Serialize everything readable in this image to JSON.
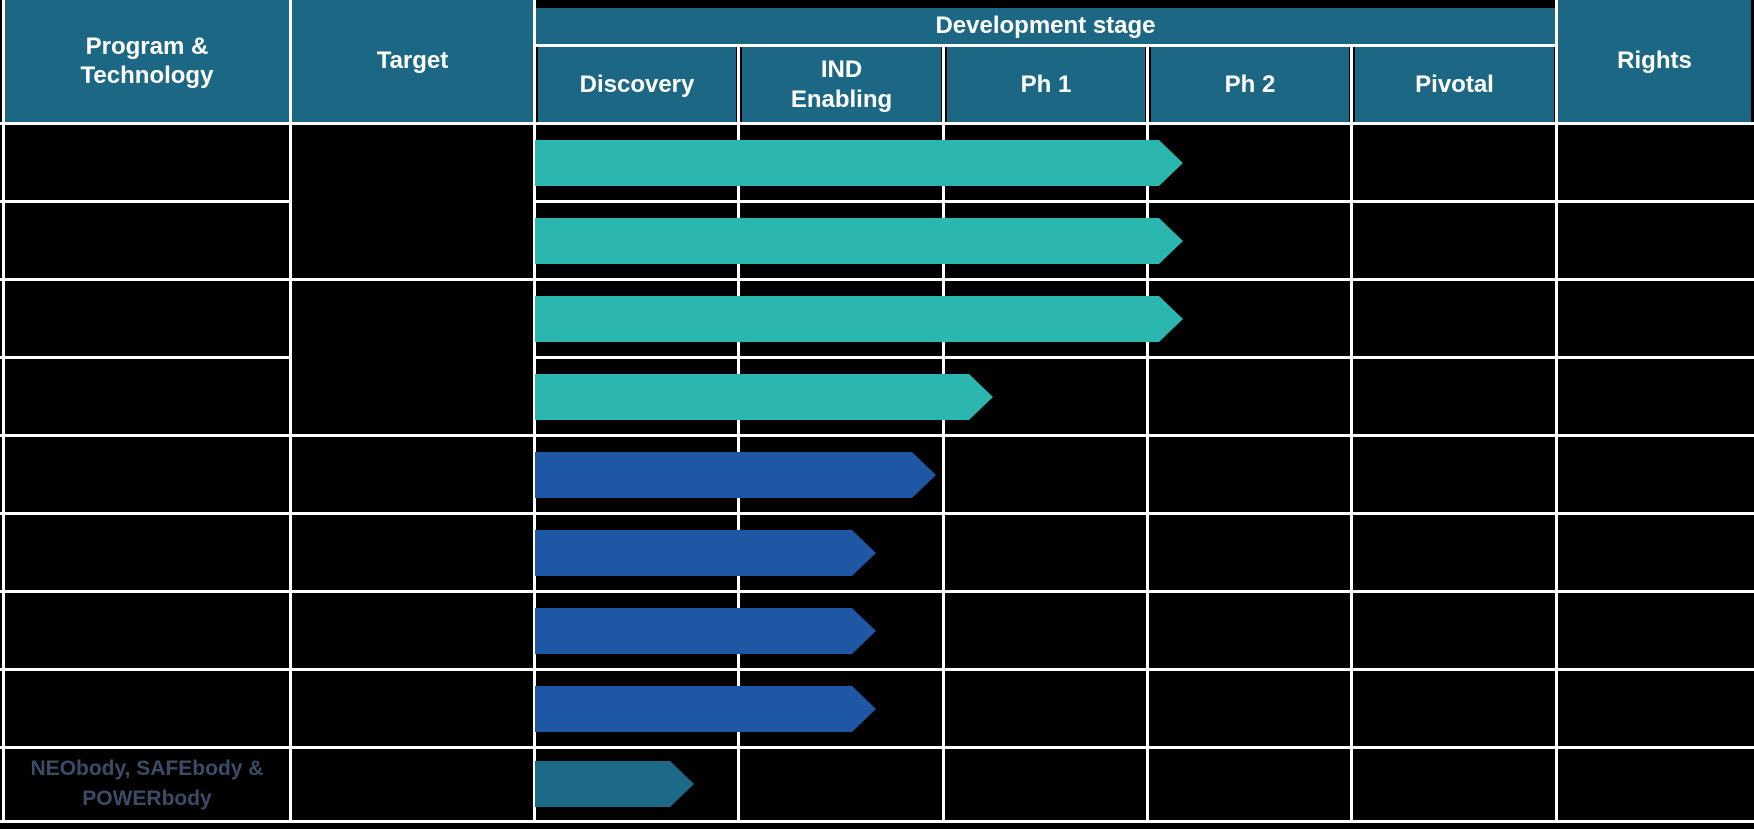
{
  "table": {
    "columns": {
      "program_technology": "Program &\nTechnology",
      "target": "Target",
      "development_stage": "Development stage",
      "stages": [
        "Discovery",
        "IND\nEnabling",
        "Ph 1",
        "Ph 2",
        "Pivotal"
      ],
      "rights": "Rights"
    },
    "rows": [
      {
        "program": "",
        "target": "",
        "rights": ""
      },
      {
        "program": "",
        "target": "",
        "rights": ""
      },
      {
        "program": "",
        "target": "",
        "rights": ""
      },
      {
        "program": "",
        "target": "",
        "rights": ""
      },
      {
        "program": "",
        "target": "",
        "rights": ""
      },
      {
        "program": "",
        "target": "",
        "rights": ""
      },
      {
        "program": "",
        "target": "",
        "rights": ""
      },
      {
        "program": "",
        "target": "",
        "rights": ""
      },
      {
        "program": "NEObody, SAFEbody &\nPOWERbody",
        "target": "",
        "rights": ""
      }
    ],
    "target_row_merges": [
      [
        1,
        2
      ],
      [
        3,
        4
      ],
      [
        5
      ],
      [
        6
      ],
      [
        7
      ],
      [
        8
      ],
      [
        9
      ]
    ]
  },
  "chart_data": {
    "type": "bar",
    "subtype": "pipeline-gantt",
    "title": "Development stage",
    "stage_axis": [
      "Discovery",
      "IND Enabling",
      "Ph 1",
      "Ph 2",
      "Pivotal"
    ],
    "bars": [
      {
        "row": 1,
        "reach_stage_units": 3.17,
        "stage_reached": "Ph 2",
        "color": "#2BB7B0"
      },
      {
        "row": 2,
        "reach_stage_units": 3.17,
        "stage_reached": "Ph 2",
        "color": "#2BB7B0"
      },
      {
        "row": 3,
        "reach_stage_units": 3.17,
        "stage_reached": "Ph 2",
        "color": "#2BB7B0"
      },
      {
        "row": 4,
        "reach_stage_units": 2.24,
        "stage_reached": "Ph 1",
        "color": "#2BB7B0"
      },
      {
        "row": 5,
        "reach_stage_units": 1.96,
        "stage_reached": "IND Enabling",
        "color": "#1E58A5"
      },
      {
        "row": 6,
        "reach_stage_units": 1.67,
        "stage_reached": "IND Enabling",
        "color": "#1E58A5"
      },
      {
        "row": 7,
        "reach_stage_units": 1.67,
        "stage_reached": "IND Enabling",
        "color": "#1E58A5"
      },
      {
        "row": 8,
        "reach_stage_units": 1.67,
        "stage_reached": "IND Enabling",
        "color": "#1E58A5"
      },
      {
        "row": 9,
        "reach_stage_units": 0.78,
        "stage_reached": "Discovery",
        "color": "#1C6A88"
      }
    ],
    "legend": null,
    "grid": "white lines on black cells"
  },
  "colors": {
    "header_bg": "#1C6884",
    "teal_arrow": "#2BB7B0",
    "blue_arrow": "#1E58A5",
    "dark_teal_arrow": "#1C6A88",
    "cell_bg": "#000000",
    "grid": "#FFFFFF",
    "note_text": "#3D4C66"
  }
}
